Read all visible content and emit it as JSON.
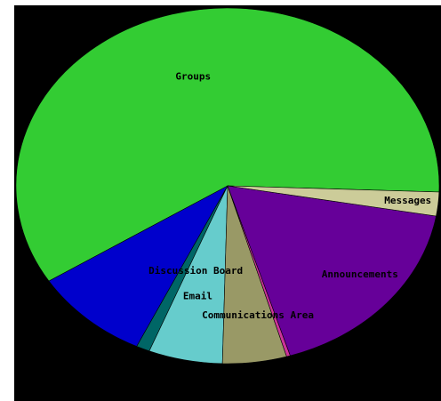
{
  "chart_data": {
    "type": "pie",
    "title": "",
    "labels": [
      "Groups",
      "Discussion Board",
      "Email",
      "Communications Area",
      "Announcements",
      "Messages"
    ],
    "slices": [
      {
        "label": "Groups",
        "value": 63.3,
        "color": "#33cc33",
        "show_label": true
      },
      {
        "label": "Discussion Board",
        "value": 9.5,
        "color": "#0000cc",
        "show_label": true
      },
      {
        "label": "",
        "value": 1.1,
        "color": "#006666",
        "show_label": false
      },
      {
        "label": "Email",
        "value": 6.0,
        "color": "#66cccc",
        "show_label": true
      },
      {
        "label": "Communications Area",
        "value": 5.2,
        "color": "#999966",
        "show_label": true
      },
      {
        "label": "",
        "value": 0.3,
        "color": "#cc3399",
        "show_label": false
      },
      {
        "label": "Announcements",
        "value": 18.6,
        "color": "#660099",
        "show_label": true
      },
      {
        "label": "Messages",
        "value": 2.3,
        "color": "#cccc99",
        "show_label": true
      }
    ],
    "start_angle_deg": -2,
    "direction": "counterclockwise",
    "background": "#000000",
    "legend": "none"
  }
}
